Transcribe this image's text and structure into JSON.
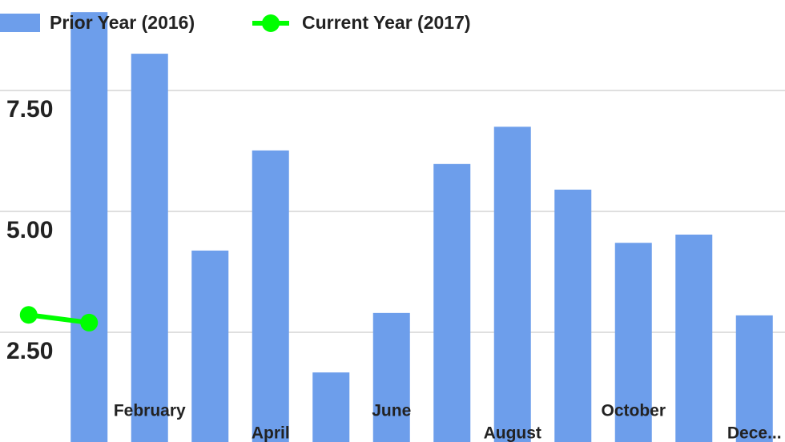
{
  "chart_data": {
    "type": "bar-line",
    "categories": [
      null,
      null,
      "February",
      null,
      "April",
      null,
      "June",
      null,
      "August",
      null,
      "October",
      null,
      "Dece..."
    ],
    "series": [
      {
        "name": "Prior Year (2016)",
        "type": "bar",
        "color": "#6d9eeb",
        "values": [
          null,
          9.12,
          8.26,
          4.19,
          6.26,
          1.67,
          2.9,
          5.98,
          6.75,
          5.45,
          4.35,
          4.52,
          2.85
        ]
      },
      {
        "name": "Current Year (2017)",
        "type": "line",
        "color": "#00ff00",
        "values": [
          2.86,
          2.7,
          null,
          null,
          null,
          null,
          null,
          null,
          null,
          null,
          null,
          null,
          null
        ]
      }
    ],
    "ylim": [
      0,
      10
    ],
    "yticks": [
      {
        "value": 2.5,
        "label": "2.50"
      },
      {
        "value": 5,
        "label": "5.00"
      },
      {
        "value": 7.5,
        "label": "7.50"
      }
    ],
    "grid": true
  }
}
